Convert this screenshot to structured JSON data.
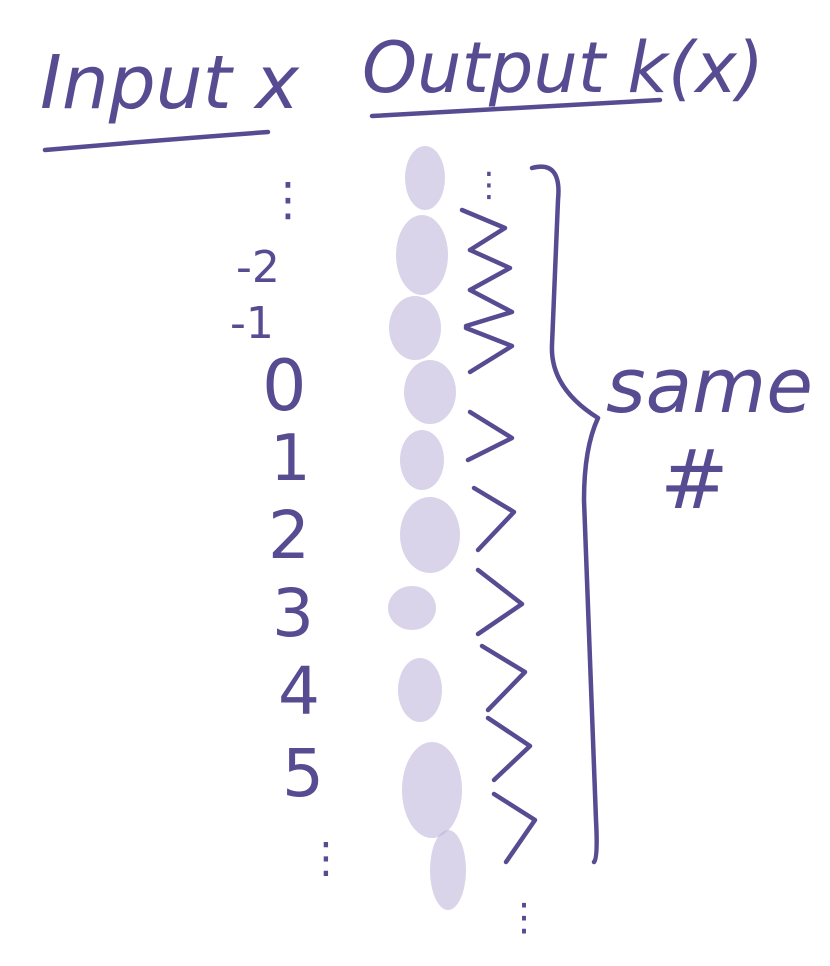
{
  "diagram": {
    "input_header": "Input x",
    "output_header": "Output k(x)",
    "input_values": [
      "-2",
      "-1",
      "0",
      "1",
      "2",
      "3",
      "4",
      "5"
    ],
    "ellipsis_top": "⋮",
    "ellipsis_bottom": "⋮",
    "output_ellipsis_top": "⋮",
    "output_ellipsis_bottom": "⋮",
    "brace_label_line1": "same",
    "brace_label_line2": "#",
    "ink_color": "#574b92"
  }
}
